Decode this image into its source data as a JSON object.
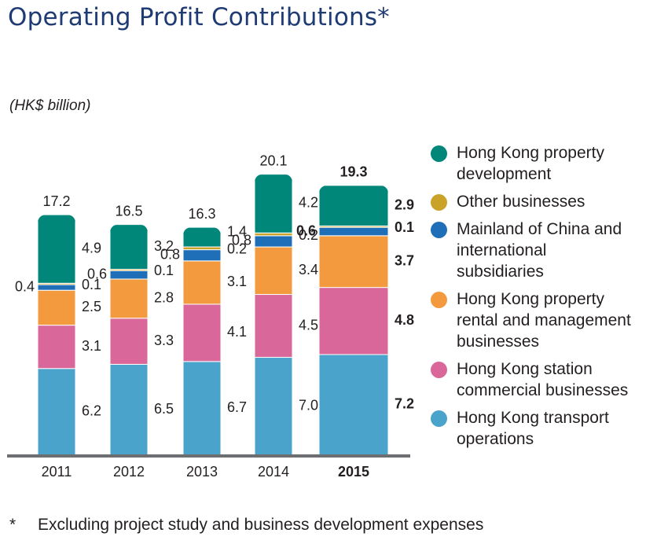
{
  "title": "Operating Profit Contributions*",
  "unit_label": "(HK$ billion)",
  "footnote": {
    "marker": "*",
    "text": "Excluding project study and business development expenses"
  },
  "colors": {
    "hk_transport": "#4aa3cb",
    "hk_station": "#d9679a",
    "hk_rental": "#f39a3e",
    "mainland": "#1f6fb8",
    "other": "#c9a227",
    "hk_property": "#00877a",
    "axis": "#6d6e71"
  },
  "legend": [
    {
      "key": "hk_property",
      "label": "Hong Kong property development"
    },
    {
      "key": "other",
      "label": "Other businesses"
    },
    {
      "key": "mainland",
      "label": "Mainland of China and international subsidiaries"
    },
    {
      "key": "hk_rental",
      "label": "Hong Kong property rental and management businesses"
    },
    {
      "key": "hk_station",
      "label": "Hong Kong station commercial businesses"
    },
    {
      "key": "hk_transport",
      "label": "Hong Kong transport operations"
    }
  ],
  "chart_data": {
    "type": "bar",
    "stacked": true,
    "categories": [
      "2011",
      "2012",
      "2013",
      "2014",
      "2015"
    ],
    "highlight_category": "2015",
    "totals": [
      "17.2",
      "16.5",
      "16.3",
      "20.1",
      "19.3"
    ],
    "series": [
      {
        "key": "hk_transport",
        "name": "Hong Kong transport operations",
        "values": [
          6.2,
          6.5,
          6.7,
          7.0,
          7.2
        ],
        "labels": [
          "6.2",
          "6.5",
          "6.7",
          "7.0",
          "7.2"
        ]
      },
      {
        "key": "hk_station",
        "name": "Hong Kong station commercial businesses",
        "values": [
          3.1,
          3.3,
          4.1,
          4.5,
          4.8
        ],
        "labels": [
          "3.1",
          "3.3",
          "4.1",
          "4.5",
          "4.8"
        ]
      },
      {
        "key": "hk_rental",
        "name": "Hong Kong property rental and management businesses",
        "values": [
          2.5,
          2.8,
          3.1,
          3.4,
          3.7
        ],
        "labels": [
          "2.5",
          "2.8",
          "3.1",
          "3.4",
          "3.7"
        ]
      },
      {
        "key": "mainland",
        "name": "Mainland of China and international subsidiaries",
        "values": [
          0.4,
          0.6,
          0.8,
          0.8,
          0.6
        ],
        "labels": [
          "0.4",
          "0.6",
          "0.8",
          "0.8",
          "0.6"
        ]
      },
      {
        "key": "other",
        "name": "Other businesses",
        "values": [
          0.1,
          0.1,
          0.2,
          0.2,
          0.1
        ],
        "labels": [
          "0.1",
          "0.1",
          "0.2",
          "0.2",
          "0.1"
        ]
      },
      {
        "key": "hk_property",
        "name": "Hong Kong property development",
        "values": [
          4.9,
          3.2,
          1.4,
          4.2,
          2.9
        ],
        "labels": [
          "4.9",
          "3.2",
          "1.4",
          "4.2",
          "2.9"
        ]
      }
    ],
    "ylim": [
      0,
      21
    ],
    "grid": false,
    "legend_position": "right"
  }
}
